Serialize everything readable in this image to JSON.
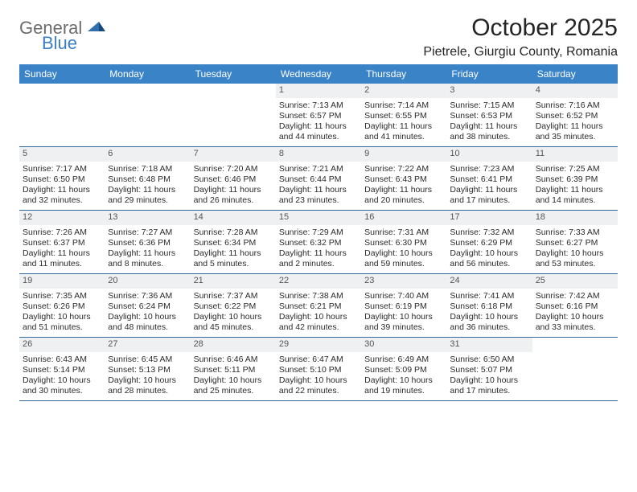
{
  "brand": {
    "line1": "General",
    "line2": "Blue"
  },
  "title": "October 2025",
  "location": "Pietrele, Giurgiu County, Romania",
  "colors": {
    "header_bg": "#3b83c7",
    "header_text": "#ffffff",
    "daynum_bg": "#eef0f2",
    "daynum_text": "#555555",
    "border": "#35689d",
    "text": "#2b2b2b",
    "brand_gray": "#6c6c6c",
    "brand_blue": "#3b7fc4"
  },
  "typography": {
    "title_fontsize": 30,
    "location_fontsize": 16,
    "dow_fontsize": 12,
    "cell_fontsize": 10.5
  },
  "days_of_week": [
    "Sunday",
    "Monday",
    "Tuesday",
    "Wednesday",
    "Thursday",
    "Friday",
    "Saturday"
  ],
  "weeks": [
    [
      null,
      null,
      null,
      {
        "n": "1",
        "sr": "Sunrise: 7:13 AM",
        "ss": "Sunset: 6:57 PM",
        "d1": "Daylight: 11 hours",
        "d2": "and 44 minutes."
      },
      {
        "n": "2",
        "sr": "Sunrise: 7:14 AM",
        "ss": "Sunset: 6:55 PM",
        "d1": "Daylight: 11 hours",
        "d2": "and 41 minutes."
      },
      {
        "n": "3",
        "sr": "Sunrise: 7:15 AM",
        "ss": "Sunset: 6:53 PM",
        "d1": "Daylight: 11 hours",
        "d2": "and 38 minutes."
      },
      {
        "n": "4",
        "sr": "Sunrise: 7:16 AM",
        "ss": "Sunset: 6:52 PM",
        "d1": "Daylight: 11 hours",
        "d2": "and 35 minutes."
      }
    ],
    [
      {
        "n": "5",
        "sr": "Sunrise: 7:17 AM",
        "ss": "Sunset: 6:50 PM",
        "d1": "Daylight: 11 hours",
        "d2": "and 32 minutes."
      },
      {
        "n": "6",
        "sr": "Sunrise: 7:18 AM",
        "ss": "Sunset: 6:48 PM",
        "d1": "Daylight: 11 hours",
        "d2": "and 29 minutes."
      },
      {
        "n": "7",
        "sr": "Sunrise: 7:20 AM",
        "ss": "Sunset: 6:46 PM",
        "d1": "Daylight: 11 hours",
        "d2": "and 26 minutes."
      },
      {
        "n": "8",
        "sr": "Sunrise: 7:21 AM",
        "ss": "Sunset: 6:44 PM",
        "d1": "Daylight: 11 hours",
        "d2": "and 23 minutes."
      },
      {
        "n": "9",
        "sr": "Sunrise: 7:22 AM",
        "ss": "Sunset: 6:43 PM",
        "d1": "Daylight: 11 hours",
        "d2": "and 20 minutes."
      },
      {
        "n": "10",
        "sr": "Sunrise: 7:23 AM",
        "ss": "Sunset: 6:41 PM",
        "d1": "Daylight: 11 hours",
        "d2": "and 17 minutes."
      },
      {
        "n": "11",
        "sr": "Sunrise: 7:25 AM",
        "ss": "Sunset: 6:39 PM",
        "d1": "Daylight: 11 hours",
        "d2": "and 14 minutes."
      }
    ],
    [
      {
        "n": "12",
        "sr": "Sunrise: 7:26 AM",
        "ss": "Sunset: 6:37 PM",
        "d1": "Daylight: 11 hours",
        "d2": "and 11 minutes."
      },
      {
        "n": "13",
        "sr": "Sunrise: 7:27 AM",
        "ss": "Sunset: 6:36 PM",
        "d1": "Daylight: 11 hours",
        "d2": "and 8 minutes."
      },
      {
        "n": "14",
        "sr": "Sunrise: 7:28 AM",
        "ss": "Sunset: 6:34 PM",
        "d1": "Daylight: 11 hours",
        "d2": "and 5 minutes."
      },
      {
        "n": "15",
        "sr": "Sunrise: 7:29 AM",
        "ss": "Sunset: 6:32 PM",
        "d1": "Daylight: 11 hours",
        "d2": "and 2 minutes."
      },
      {
        "n": "16",
        "sr": "Sunrise: 7:31 AM",
        "ss": "Sunset: 6:30 PM",
        "d1": "Daylight: 10 hours",
        "d2": "and 59 minutes."
      },
      {
        "n": "17",
        "sr": "Sunrise: 7:32 AM",
        "ss": "Sunset: 6:29 PM",
        "d1": "Daylight: 10 hours",
        "d2": "and 56 minutes."
      },
      {
        "n": "18",
        "sr": "Sunrise: 7:33 AM",
        "ss": "Sunset: 6:27 PM",
        "d1": "Daylight: 10 hours",
        "d2": "and 53 minutes."
      }
    ],
    [
      {
        "n": "19",
        "sr": "Sunrise: 7:35 AM",
        "ss": "Sunset: 6:26 PM",
        "d1": "Daylight: 10 hours",
        "d2": "and 51 minutes."
      },
      {
        "n": "20",
        "sr": "Sunrise: 7:36 AM",
        "ss": "Sunset: 6:24 PM",
        "d1": "Daylight: 10 hours",
        "d2": "and 48 minutes."
      },
      {
        "n": "21",
        "sr": "Sunrise: 7:37 AM",
        "ss": "Sunset: 6:22 PM",
        "d1": "Daylight: 10 hours",
        "d2": "and 45 minutes."
      },
      {
        "n": "22",
        "sr": "Sunrise: 7:38 AM",
        "ss": "Sunset: 6:21 PM",
        "d1": "Daylight: 10 hours",
        "d2": "and 42 minutes."
      },
      {
        "n": "23",
        "sr": "Sunrise: 7:40 AM",
        "ss": "Sunset: 6:19 PM",
        "d1": "Daylight: 10 hours",
        "d2": "and 39 minutes."
      },
      {
        "n": "24",
        "sr": "Sunrise: 7:41 AM",
        "ss": "Sunset: 6:18 PM",
        "d1": "Daylight: 10 hours",
        "d2": "and 36 minutes."
      },
      {
        "n": "25",
        "sr": "Sunrise: 7:42 AM",
        "ss": "Sunset: 6:16 PM",
        "d1": "Daylight: 10 hours",
        "d2": "and 33 minutes."
      }
    ],
    [
      {
        "n": "26",
        "sr": "Sunrise: 6:43 AM",
        "ss": "Sunset: 5:14 PM",
        "d1": "Daylight: 10 hours",
        "d2": "and 30 minutes."
      },
      {
        "n": "27",
        "sr": "Sunrise: 6:45 AM",
        "ss": "Sunset: 5:13 PM",
        "d1": "Daylight: 10 hours",
        "d2": "and 28 minutes."
      },
      {
        "n": "28",
        "sr": "Sunrise: 6:46 AM",
        "ss": "Sunset: 5:11 PM",
        "d1": "Daylight: 10 hours",
        "d2": "and 25 minutes."
      },
      {
        "n": "29",
        "sr": "Sunrise: 6:47 AM",
        "ss": "Sunset: 5:10 PM",
        "d1": "Daylight: 10 hours",
        "d2": "and 22 minutes."
      },
      {
        "n": "30",
        "sr": "Sunrise: 6:49 AM",
        "ss": "Sunset: 5:09 PM",
        "d1": "Daylight: 10 hours",
        "d2": "and 19 minutes."
      },
      {
        "n": "31",
        "sr": "Sunrise: 6:50 AM",
        "ss": "Sunset: 5:07 PM",
        "d1": "Daylight: 10 hours",
        "d2": "and 17 minutes."
      },
      null
    ]
  ]
}
